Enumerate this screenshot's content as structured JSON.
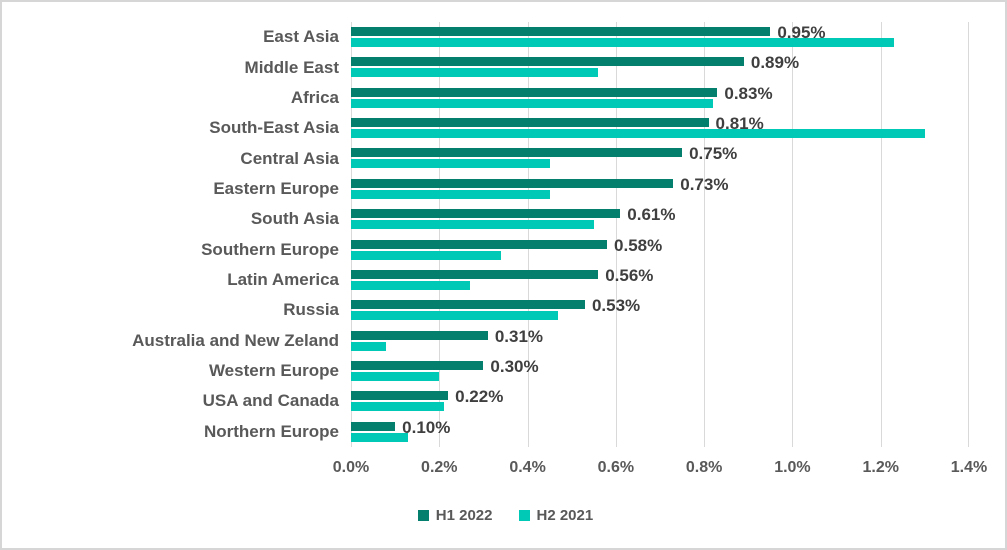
{
  "chart_data": {
    "type": "bar",
    "orientation": "horizontal",
    "title": "",
    "categories": [
      "East Asia",
      "Middle East",
      "Africa",
      "South-East Asia",
      "Central Asia",
      "Eastern Europe",
      "South Asia",
      "Southern Europe",
      "Latin America",
      "Russia",
      "Australia and New Zeland",
      "Western Europe",
      "USA and Canada",
      "Northern Europe"
    ],
    "series": [
      {
        "name": "H1 2022",
        "color": "#047F6E",
        "values": [
          0.95,
          0.89,
          0.83,
          0.81,
          0.75,
          0.73,
          0.61,
          0.58,
          0.56,
          0.53,
          0.31,
          0.3,
          0.22,
          0.1
        ],
        "data_labels": [
          "0.95%",
          "0.89%",
          "0.83%",
          "0.81%",
          "0.75%",
          "0.73%",
          "0.61%",
          "0.58%",
          "0.56%",
          "0.53%",
          "0.31%",
          "0.30%",
          "0.22%",
          "0.10%"
        ]
      },
      {
        "name": "H2 2021",
        "color": "#00C9B5",
        "values": [
          1.23,
          0.56,
          0.82,
          1.3,
          0.45,
          0.45,
          0.55,
          0.34,
          0.27,
          0.47,
          0.08,
          0.2,
          0.21,
          0.13
        ],
        "data_labels": []
      }
    ],
    "value_unit": "%",
    "xlim": [
      0,
      1.4
    ],
    "x_ticks": [
      "0.0%",
      "0.2%",
      "0.4%",
      "0.6%",
      "0.8%",
      "1.0%",
      "1.2%",
      "1.4%"
    ],
    "x_tick_values": [
      0,
      0.2,
      0.4,
      0.6,
      0.8,
      1.0,
      1.2,
      1.4
    ],
    "grid": true,
    "legend_position": "bottom"
  },
  "styles": {
    "gridline_color": "#d9d9d9",
    "category_label_color": "#595959",
    "data_label_color": "#3f3f3f",
    "tick_label_color": "#595959",
    "frame_border_color": "#d6d6d6",
    "background_color": "#ffffff"
  }
}
